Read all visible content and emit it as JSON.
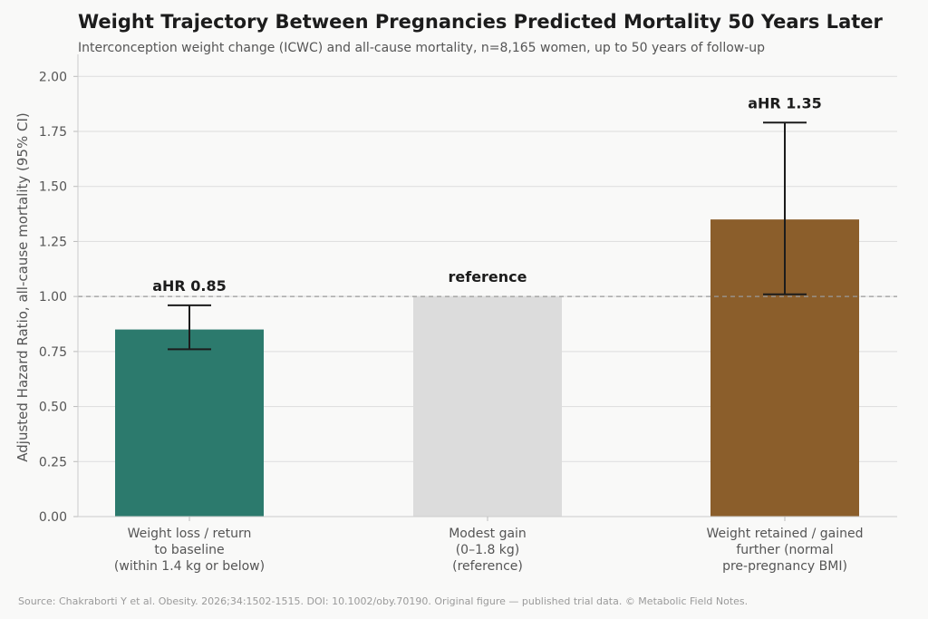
{
  "title": "Weight Trajectory Between Pregnancies Predicted Mortality 50 Years Later",
  "subtitle": "Interconception weight change (ICWC) and all-cause mortality, n=8,165 women, up to 50 years of follow-up",
  "source": "Source: Chakraborti Y et al. Obesity. 2026;34:1502-1515. DOI: 10.1002/oby.70190. Original figure — published trial data. © Metabolic Field Notes.",
  "chart_data": {
    "type": "bar",
    "ylabel": "Adjusted Hazard Ratio, all-cause mortality (95% CI)",
    "xlabel": "",
    "ylim": [
      0,
      2.1
    ],
    "yticks": [
      "0.00",
      "0.25",
      "0.50",
      "0.75",
      "1.00",
      "1.25",
      "1.50",
      "1.75",
      "2.00"
    ],
    "ytick_values": [
      0,
      0.25,
      0.5,
      0.75,
      1.0,
      1.25,
      1.5,
      1.75,
      2.0
    ],
    "grid": "horizontal",
    "reference_line": 1.0,
    "categories": [
      [
        "Weight loss / return",
        "to baseline",
        "(within 1.4 kg or below)"
      ],
      [
        "Modest gain",
        "(0–1.8 kg)",
        "(reference)"
      ],
      [
        "Weight retained / gained",
        "further (normal",
        "pre-pregnancy BMI)"
      ]
    ],
    "values": [
      0.85,
      1.0,
      1.35
    ],
    "ci_low": [
      0.76,
      null,
      1.01
    ],
    "ci_high": [
      0.96,
      null,
      1.79
    ],
    "labels": [
      "aHR 0.85",
      "reference",
      "aHR 1.35"
    ],
    "colors": [
      "#2c7a6d",
      "#dcdcdc",
      "#8b5e2b"
    ]
  }
}
